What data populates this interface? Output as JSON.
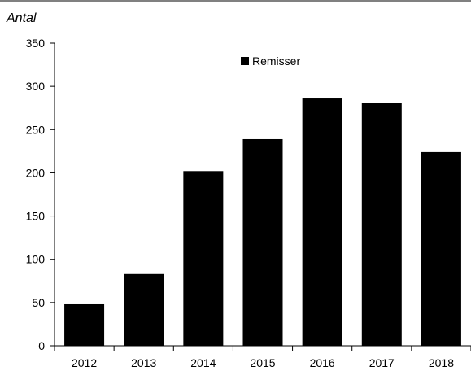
{
  "chart_data": {
    "type": "bar",
    "title": "",
    "xlabel": "",
    "ylabel": "Antal",
    "categories": [
      "2012",
      "2013",
      "2014",
      "2015",
      "2016",
      "2017",
      "2018"
    ],
    "series": [
      {
        "name": "Remisser",
        "values": [
          48,
          83,
          202,
          239,
          286,
          281,
          224
        ],
        "color": "#000000"
      }
    ],
    "ylim": [
      0,
      350
    ],
    "yticks": [
      0,
      50,
      100,
      150,
      200,
      250,
      300,
      350
    ],
    "grid": false,
    "legend_position": "top-center"
  }
}
